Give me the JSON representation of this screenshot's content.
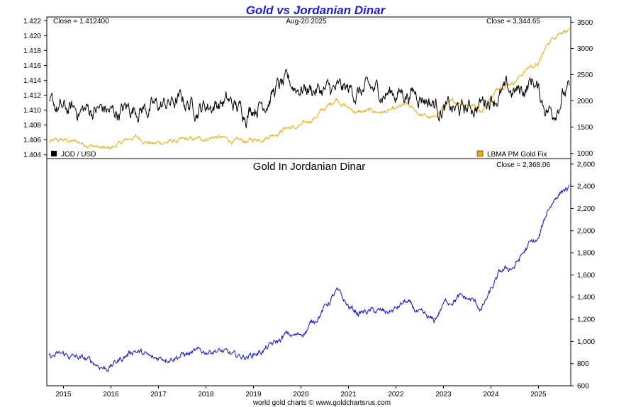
{
  "title": "Gold vs Jordanian Dinar",
  "footer": "world gold charts © www.goldchartsrus.com",
  "colors": {
    "title": "#1a1ae6",
    "jod": "#000000",
    "gold_fix": "#f0a800",
    "gold_jod": "#1010d0",
    "frame": "#000000"
  },
  "chart_data": [
    {
      "type": "line",
      "panel": "top",
      "header": {
        "left": "Close = 1.412400",
        "center": "Aug-20  2025",
        "right": "Close = 3,344.65"
      },
      "yaxis_left": {
        "ylim": [
          1.4035,
          1.4225
        ],
        "ticks": [
          "1.404",
          "1.406",
          "1.408",
          "1.410",
          "1.412",
          "1.414",
          "1.416",
          "1.418",
          "1.420",
          "1.422"
        ]
      },
      "yaxis_right": {
        "ylim": [
          900,
          3600
        ],
        "ticks": [
          "1000",
          "1500",
          "2000",
          "2500",
          "3000",
          "3500"
        ]
      },
      "xlim": [
        2014.65,
        2025.68
      ],
      "legend": [
        {
          "label": "JOD / USD",
          "position": "bottom-left",
          "color_key": "jod"
        },
        {
          "label": "LBMA PM Gold Fix",
          "position": "bottom-right",
          "color_key": "gold_fix"
        }
      ],
      "series": [
        {
          "name": "JOD / USD",
          "axis": "left",
          "x": [
            2014.7,
            2014.85,
            2015.0,
            2015.3,
            2015.6,
            2015.9,
            2016.0,
            2016.3,
            2016.6,
            2016.9,
            2017.2,
            2017.5,
            2017.8,
            2018.1,
            2018.4,
            2018.7,
            2018.85,
            2019.0,
            2019.2,
            2019.5,
            2019.8,
            2020.0,
            2020.2,
            2020.5,
            2020.8,
            2021.0,
            2021.5,
            2022.0,
            2022.5,
            2022.9,
            2023.2,
            2023.5,
            2023.8,
            2024.0,
            2024.3,
            2024.6,
            2024.9,
            2025.1,
            2025.3,
            2025.5,
            2025.65
          ],
          "y": [
            1.4105,
            1.4102,
            1.4098,
            1.41,
            1.41,
            1.41,
            1.4095,
            1.41,
            1.4105,
            1.4102,
            1.4108,
            1.4112,
            1.4105,
            1.4108,
            1.4112,
            1.41,
            1.41,
            1.4108,
            1.4112,
            1.413,
            1.4132,
            1.4132,
            1.413,
            1.4125,
            1.4124,
            1.4125,
            1.4124,
            1.4124,
            1.4124,
            1.4105,
            1.4098,
            1.41,
            1.411,
            1.412,
            1.4122,
            1.4124,
            1.414,
            1.411,
            1.4098,
            1.4124,
            1.4124
          ]
        },
        {
          "name": "LBMA PM Gold Fix",
          "axis": "right",
          "x": [
            2014.7,
            2015.0,
            2015.5,
            2015.9,
            2016.0,
            2016.5,
            2016.9,
            2017.0,
            2017.5,
            2017.9,
            2018.2,
            2018.6,
            2018.9,
            2019.2,
            2019.5,
            2019.7,
            2019.9,
            2020.1,
            2020.3,
            2020.6,
            2020.75,
            2021.0,
            2021.2,
            2021.5,
            2021.8,
            2022.0,
            2022.2,
            2022.5,
            2022.8,
            2023.0,
            2023.3,
            2023.6,
            2023.8,
            2024.0,
            2024.2,
            2024.5,
            2024.8,
            2025.0,
            2025.2,
            2025.4,
            2025.55,
            2025.65
          ],
          "y": [
            1210,
            1250,
            1180,
            1070,
            1100,
            1320,
            1180,
            1200,
            1240,
            1270,
            1320,
            1220,
            1230,
            1300,
            1400,
            1500,
            1480,
            1560,
            1700,
            1920,
            2060,
            1860,
            1780,
            1800,
            1790,
            1820,
            1920,
            1750,
            1650,
            1900,
            1980,
            1940,
            1830,
            2050,
            2300,
            2380,
            2650,
            2700,
            3100,
            3300,
            3370,
            3345
          ]
        }
      ]
    },
    {
      "type": "line",
      "panel": "bottom",
      "title": "Gold In Jordanian Dinar",
      "header": {
        "right": "Close = 2,368.06"
      },
      "yaxis_right": {
        "ylim": [
          600,
          2650
        ],
        "ticks": [
          "600",
          "800",
          "1,000",
          "1,200",
          "1,400",
          "1,600",
          "1,800",
          "2,000",
          "2,200",
          "2,400",
          "2,600"
        ]
      },
      "xlim": [
        2014.65,
        2025.68
      ],
      "x_ticks": [
        "2015",
        "2016",
        "2017",
        "2018",
        "2019",
        "2020",
        "2021",
        "2022",
        "2023",
        "2024",
        "2025"
      ],
      "series": [
        {
          "name": "Gold In Jordanian Dinar",
          "x": [
            2014.7,
            2015.0,
            2015.5,
            2015.9,
            2016.0,
            2016.5,
            2016.9,
            2017.0,
            2017.5,
            2017.9,
            2018.2,
            2018.6,
            2018.9,
            2019.2,
            2019.5,
            2019.7,
            2019.9,
            2020.1,
            2020.3,
            2020.6,
            2020.75,
            2021.0,
            2021.2,
            2021.5,
            2021.8,
            2022.0,
            2022.2,
            2022.5,
            2022.8,
            2023.0,
            2023.3,
            2023.6,
            2023.8,
            2024.0,
            2024.2,
            2024.5,
            2024.8,
            2025.0,
            2025.2,
            2025.4,
            2025.55,
            2025.65
          ],
          "y": [
            860,
            880,
            830,
            760,
            780,
            930,
            830,
            850,
            880,
            900,
            930,
            860,
            870,
            920,
            990,
            1060,
            1045,
            1100,
            1200,
            1360,
            1450,
            1310,
            1260,
            1270,
            1260,
            1290,
            1360,
            1240,
            1170,
            1340,
            1400,
            1370,
            1290,
            1450,
            1620,
            1680,
            1870,
            1910,
            2190,
            2330,
            2380,
            2368
          ]
        }
      ]
    }
  ]
}
